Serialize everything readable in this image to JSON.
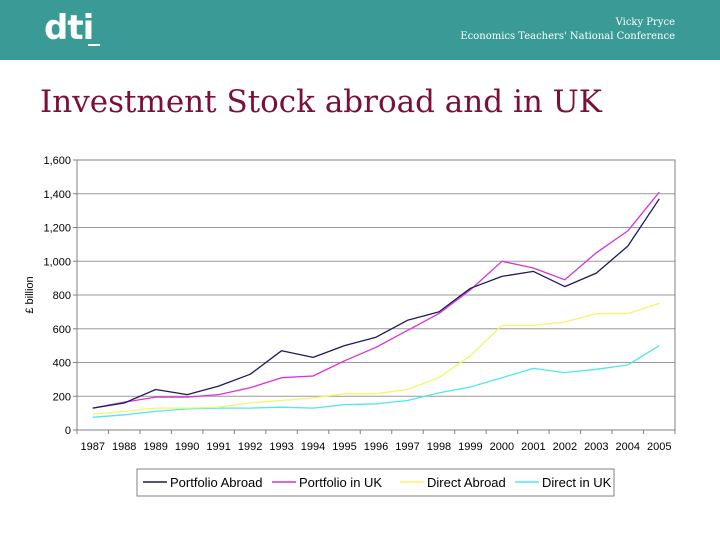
{
  "header": {
    "logo": "dti",
    "presenter_name": "Vicky Pryce",
    "event": "Economics Teachers' National Conference",
    "background_color": "#3a9b96"
  },
  "slide": {
    "title": "Investment Stock abroad and in UK"
  },
  "chart_data": {
    "type": "line",
    "title": "",
    "xlabel": "",
    "ylabel": "£ billion",
    "ylim": [
      0,
      1600
    ],
    "y_ticks": [
      "0",
      "200",
      "400",
      "600",
      "800",
      "1,000",
      "1,200",
      "1,400",
      "1,600"
    ],
    "categories": [
      "1987",
      "1988",
      "1989",
      "1990",
      "1991",
      "1992",
      "1993",
      "1994",
      "1995",
      "1996",
      "1997",
      "1998",
      "1999",
      "2000",
      "2001",
      "2002",
      "2003",
      "2004",
      "2005"
    ],
    "grid": true,
    "legend_position": "bottom",
    "series": [
      {
        "name": "Portfolio Abroad",
        "color": "#1f1a5c",
        "values": [
          130,
          160,
          240,
          210,
          260,
          330,
          470,
          430,
          500,
          550,
          650,
          700,
          840,
          910,
          940,
          850,
          930,
          1090,
          1370
        ]
      },
      {
        "name": "Portfolio in UK",
        "color": "#d633d6",
        "values": [
          130,
          165,
          195,
          195,
          210,
          250,
          310,
          320,
          410,
          490,
          590,
          690,
          830,
          1000,
          960,
          890,
          1050,
          1180,
          1410
        ]
      },
      {
        "name": "Direct Abroad",
        "color": "#f5f56a",
        "values": [
          95,
          110,
          130,
          130,
          135,
          160,
          175,
          190,
          215,
          215,
          240,
          310,
          440,
          620,
          620,
          640,
          690,
          690,
          750
        ]
      },
      {
        "name": "Direct in UK",
        "color": "#4de8f0",
        "values": [
          75,
          90,
          110,
          125,
          130,
          130,
          135,
          130,
          150,
          155,
          175,
          220,
          255,
          310,
          365,
          340,
          360,
          385,
          500
        ]
      }
    ]
  }
}
